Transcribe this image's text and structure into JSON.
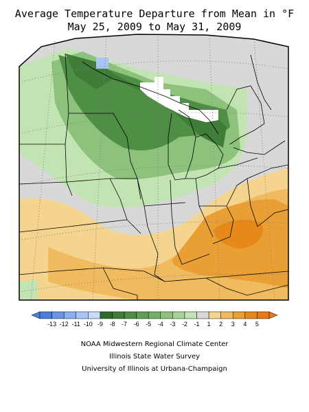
{
  "title_line1": "Average Temperature Departure from Mean in °F",
  "title_line2": "May 25, 2009 to May 31, 2009",
  "legend": {
    "labels": [
      "-13",
      "-12",
      "-11",
      "-10",
      "-9",
      "-8",
      "-7",
      "-6",
      "-5",
      "-4",
      "-3",
      "-2",
      "-1",
      "1",
      "2",
      "3",
      "4",
      "5"
    ],
    "bins": [
      {
        "color": "#4a7de0"
      },
      {
        "color": "#6a95e8"
      },
      {
        "color": "#8aaff0"
      },
      {
        "color": "#a8c6f5"
      },
      {
        "color": "#c6dcfa"
      },
      {
        "color": "#2f6b2a"
      },
      {
        "color": "#3f7d38"
      },
      {
        "color": "#4e8e45"
      },
      {
        "color": "#5f9f55"
      },
      {
        "color": "#74b066"
      },
      {
        "color": "#8dc27c"
      },
      {
        "color": "#a8d497"
      },
      {
        "color": "#c2e4b2"
      },
      {
        "color": "#d8d8d8"
      },
      {
        "color": "#f4d48e"
      },
      {
        "color": "#f0bb5e"
      },
      {
        "color": "#ea9f34"
      },
      {
        "color": "#e6891a"
      },
      {
        "color": "#ea7b12"
      }
    ]
  },
  "credits": [
    "NOAA Midwestern Regional Climate Center",
    "Illinois State Water Survey",
    "University of Illinois at Urbana-Champaign"
  ],
  "colors": {
    "frame": "#000000",
    "grid": "#808080",
    "neutral": "#d8d8d8",
    "warm_light": "#f4d48e",
    "warm_mid": "#f0bb5e",
    "warm_deep": "#ea9f34",
    "cool_light": "#c2e4b2",
    "cool_mid": "#8dc27c",
    "cool_deep": "#4e8e45",
    "cool_darkest": "#3f7d38",
    "lake_blue": "#a8c6f5"
  }
}
